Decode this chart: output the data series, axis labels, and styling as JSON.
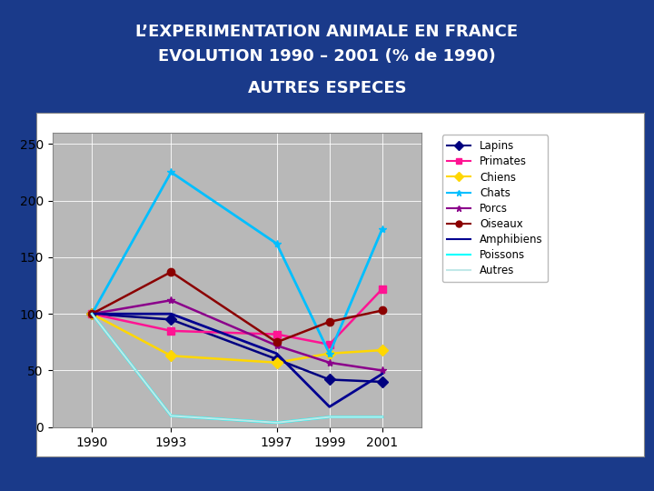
{
  "title_line1": "L’EXPERIMENTATION ANIMALE EN FRANCE",
  "title_line2": "EVOLUTION 1990 – 2001 (% de 1990)",
  "subtitle": "AUTRES ESPECES",
  "background_color": "#1a3a8a",
  "plot_bg_color": "#b8b8b8",
  "chart_bg_color": "#ffffff",
  "years": [
    1990,
    1993,
    1997,
    1999,
    2001
  ],
  "series": [
    {
      "name": "Lapins",
      "color": "#000080",
      "marker": "D",
      "linewidth": 1.8,
      "values": [
        100,
        95,
        60,
        42,
        40
      ]
    },
    {
      "name": "Primates",
      "color": "#FF1493",
      "marker": "s",
      "linewidth": 1.8,
      "values": [
        100,
        85,
        82,
        73,
        122
      ]
    },
    {
      "name": "Chiens",
      "color": "#FFD700",
      "marker": "D",
      "linewidth": 1.8,
      "values": [
        100,
        63,
        57,
        65,
        68
      ]
    },
    {
      "name": "Chats",
      "color": "#00BFFF",
      "marker": "*",
      "linewidth": 2.0,
      "values": [
        100,
        225,
        162,
        65,
        175
      ]
    },
    {
      "name": "Porcs",
      "color": "#8B008B",
      "marker": "*",
      "linewidth": 1.8,
      "values": [
        100,
        112,
        72,
        57,
        50
      ]
    },
    {
      "name": "Oiseaux",
      "color": "#8B0000",
      "marker": "o",
      "linewidth": 1.8,
      "values": [
        100,
        137,
        75,
        93,
        103
      ]
    },
    {
      "name": "Amphibiens",
      "color": "#000090",
      "marker": "None",
      "linewidth": 2.0,
      "values": [
        100,
        100,
        65,
        18,
        47
      ]
    },
    {
      "name": "Poissons",
      "color": "#00FFFF",
      "marker": "None",
      "linewidth": 2.0,
      "values": [
        100,
        10,
        4,
        9,
        9
      ]
    },
    {
      "name": "Autres",
      "color": "#c0e8e8",
      "marker": "None",
      "linewidth": 1.5,
      "values": [
        100,
        10,
        4,
        9,
        9
      ]
    }
  ],
  "ylim": [
    0,
    260
  ],
  "yticks": [
    0,
    50,
    100,
    150,
    200,
    250
  ],
  "title_fontsize": 13,
  "subtitle_fontsize": 13
}
